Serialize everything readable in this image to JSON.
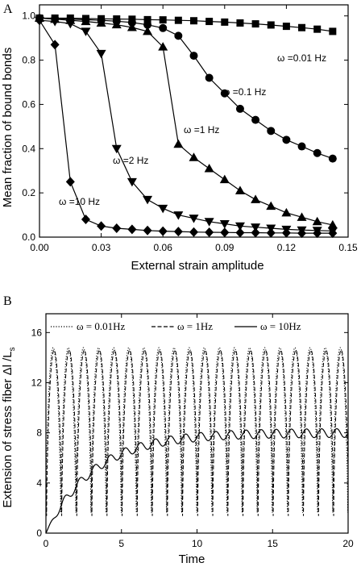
{
  "chart_data": [
    {
      "panel": "A",
      "type": "line",
      "xlabel": "External strain amplitude",
      "ylabel": "Mean fraction of bound bonds",
      "xlim": [
        0.0,
        0.15
      ],
      "ylim": [
        0.0,
        1.05
      ],
      "xticks": [
        "0.00",
        "0.03",
        "0.06",
        "0.09",
        "0.12",
        "0.15"
      ],
      "yticks": [
        "0.0",
        "0.2",
        "0.4",
        "0.6",
        "0.8",
        "1.0"
      ],
      "series": [
        {
          "name": "ω =0.01 Hz",
          "marker": "square",
          "x": [
            0.0,
            0.0075,
            0.015,
            0.0225,
            0.03,
            0.0375,
            0.045,
            0.0525,
            0.06,
            0.0675,
            0.075,
            0.0825,
            0.09,
            0.0975,
            0.105,
            0.1125,
            0.12,
            0.1275,
            0.135,
            0.1425
          ],
          "y": [
            0.99,
            0.99,
            0.99,
            0.988,
            0.987,
            0.986,
            0.985,
            0.983,
            0.982,
            0.98,
            0.978,
            0.975,
            0.972,
            0.968,
            0.964,
            0.959,
            0.953,
            0.947,
            0.94,
            0.93
          ]
        },
        {
          "name": "ω =0.1 Hz",
          "marker": "circle",
          "x": [
            0.0,
            0.0075,
            0.015,
            0.0225,
            0.03,
            0.0375,
            0.045,
            0.0525,
            0.06,
            0.0675,
            0.075,
            0.0825,
            0.09,
            0.0975,
            0.105,
            0.1125,
            0.12,
            0.1275,
            0.135,
            0.1425
          ],
          "y": [
            0.99,
            0.988,
            0.985,
            0.983,
            0.98,
            0.976,
            0.97,
            0.96,
            0.945,
            0.91,
            0.82,
            0.72,
            0.65,
            0.58,
            0.53,
            0.48,
            0.44,
            0.41,
            0.38,
            0.355
          ]
        },
        {
          "name": "ω =1 Hz",
          "marker": "triangle-up",
          "x": [
            0.0,
            0.0075,
            0.015,
            0.0225,
            0.03,
            0.0375,
            0.045,
            0.0525,
            0.06,
            0.0675,
            0.075,
            0.0825,
            0.09,
            0.0975,
            0.105,
            0.1125,
            0.12,
            0.1275,
            0.135,
            0.1425
          ],
          "y": [
            0.99,
            0.985,
            0.98,
            0.975,
            0.968,
            0.96,
            0.948,
            0.93,
            0.86,
            0.42,
            0.36,
            0.31,
            0.26,
            0.21,
            0.17,
            0.14,
            0.11,
            0.09,
            0.07,
            0.055
          ]
        },
        {
          "name": "ω =2 Hz",
          "marker": "triangle-down",
          "x": [
            0.0,
            0.0075,
            0.015,
            0.0225,
            0.03,
            0.0375,
            0.045,
            0.0525,
            0.06,
            0.0675,
            0.075,
            0.0825,
            0.09,
            0.0975,
            0.105,
            0.1125,
            0.12,
            0.1275,
            0.135,
            0.1425
          ],
          "y": [
            0.98,
            0.975,
            0.965,
            0.93,
            0.83,
            0.4,
            0.25,
            0.17,
            0.13,
            0.1,
            0.085,
            0.07,
            0.06,
            0.05,
            0.045,
            0.04,
            0.035,
            0.032,
            0.03,
            0.028
          ]
        },
        {
          "name": "ω =10 Hz",
          "marker": "diamond",
          "x": [
            0.0,
            0.0075,
            0.015,
            0.0225,
            0.03,
            0.0375,
            0.045,
            0.0525,
            0.06,
            0.0675,
            0.075,
            0.0825,
            0.09,
            0.0975,
            0.105,
            0.1125,
            0.12,
            0.1275,
            0.135,
            0.1425
          ],
          "y": [
            0.98,
            0.87,
            0.25,
            0.08,
            0.05,
            0.04,
            0.035,
            0.03,
            0.027,
            0.025,
            0.023,
            0.022,
            0.021,
            0.02,
            0.02,
            0.019,
            0.019,
            0.018,
            0.018,
            0.018
          ]
        }
      ],
      "annotations": [
        "ω =0.01 Hz",
        "ω =0.1 Hz",
        "ω =1 Hz",
        "ω =2 Hz",
        "ω =10 Hz"
      ]
    },
    {
      "panel": "B",
      "type": "line",
      "xlabel": "Time",
      "ylabel": "Extension of stress fiber Δl /L",
      "ylabel_sub": "s",
      "xlim": [
        0,
        20
      ],
      "ylim": [
        0,
        17.5
      ],
      "xticks": [
        "0",
        "5",
        "10",
        "15",
        "20"
      ],
      "yticks": [
        "0",
        "4",
        "8",
        "12",
        "16"
      ],
      "legend_placement": "top",
      "series": [
        {
          "name": "ω = 0.01Hz",
          "style": "dotted",
          "peak": 14.8,
          "period": 1.0,
          "trough": 0.0
        },
        {
          "name": "ω = 1Hz",
          "style": "dashed",
          "peak": 14.6,
          "period": 1.0,
          "trough": 0.3
        },
        {
          "name": "ω = 10Hz",
          "style": "solid",
          "plateau": 8.0,
          "period": 1.0
        }
      ]
    }
  ]
}
